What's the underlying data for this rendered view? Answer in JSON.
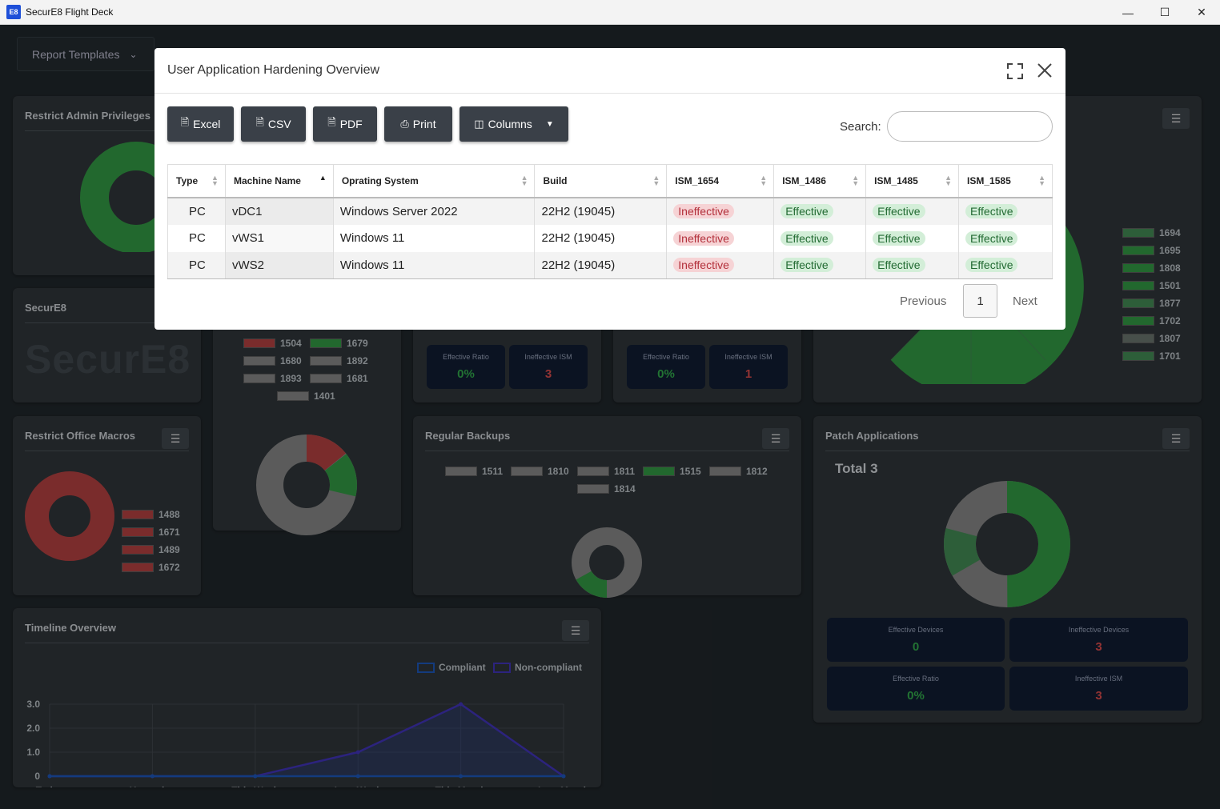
{
  "app": {
    "title": "SecurE8 Flight Deck",
    "logo": "E8"
  },
  "toolbar": {
    "report_templates": "Report Templates"
  },
  "cards": {
    "restrict_admin": {
      "title": "Restrict Admin Privileges"
    },
    "securE8": {
      "title": "SecurE8",
      "logo": "SecurE8"
    },
    "restrict_macros": {
      "title": "Restrict Office Macros",
      "legend": [
        "1488",
        "1671",
        "1489",
        "1672"
      ]
    },
    "app_hardening_card": {
      "legend": [
        "1504",
        "1679",
        "1680",
        "1892",
        "1893",
        "1681",
        "1401"
      ]
    },
    "mid_left_stats": {
      "ratio_label": "Effective Ratio",
      "ratio_value": "0%",
      "ism_label": "Ineffective ISM",
      "ism_value": "3"
    },
    "mid_right_stats": {
      "ratio_label": "Effective Ratio",
      "ratio_value": "0%",
      "ism_label": "Ineffective ISM",
      "ism_value": "1"
    },
    "right_top_legend": [
      "1694",
      "1695",
      "1808",
      "1501",
      "1877",
      "1702",
      "1807",
      "1701"
    ],
    "regular_backups": {
      "title": "Regular Backups",
      "legend": [
        "1511",
        "1810",
        "1811",
        "1515",
        "1812",
        "1814"
      ]
    },
    "patch_applications": {
      "title": "Patch Applications",
      "total": "Total 3",
      "stats": [
        {
          "label": "Effective Devices",
          "value": "0",
          "tone": "green"
        },
        {
          "label": "Ineffective Devices",
          "value": "3",
          "tone": "red"
        },
        {
          "label": "Effective Ratio",
          "value": "0%",
          "tone": "green"
        },
        {
          "label": "Ineffective ISM",
          "value": "3",
          "tone": "red"
        }
      ]
    },
    "timeline": {
      "title": "Timeline Overview",
      "legend_compliant": "Compliant",
      "legend_noncompliant": "Non-compliant",
      "y_ticks": [
        "3.0",
        "2.0",
        "1.0",
        "0"
      ],
      "x_ticks": [
        "Today",
        "Yesterday",
        "This Week",
        "Last Week",
        "This Month",
        "Last Month"
      ]
    }
  },
  "chart_data": {
    "type": "line",
    "x": [
      "Today",
      "Yesterday",
      "This Week",
      "Last Week",
      "This Month",
      "Last Month"
    ],
    "series": [
      {
        "name": "Compliant",
        "values": [
          0,
          0,
          0,
          0,
          0,
          0
        ],
        "color": "#1a4fa8"
      },
      {
        "name": "Non-compliant",
        "values": [
          0,
          0,
          0,
          1,
          3,
          0
        ],
        "color": "#3b2fa8"
      }
    ],
    "ylim": [
      0,
      3
    ],
    "grid": true,
    "legend": "top-right"
  },
  "modal": {
    "title": "User Application Hardening Overview",
    "buttons": {
      "excel": "Excel",
      "csv": "CSV",
      "pdf": "PDF",
      "print": "Print",
      "columns": "Columns"
    },
    "search_label": "Search:",
    "search_value": "",
    "columns": [
      "Type",
      "Machine Name",
      "Oprating System",
      "Build",
      "ISM_1654",
      "ISM_1486",
      "ISM_1485",
      "ISM_1585"
    ],
    "rows": [
      [
        "PC",
        "vDC1",
        "Windows Server 2022",
        "22H2 (19045)",
        "Ineffective",
        "Effective",
        "Effective",
        "Effective"
      ],
      [
        "PC",
        "vWS1",
        "Windows 11",
        "22H2 (19045)",
        "Ineffective",
        "Effective",
        "Effective",
        "Effective"
      ],
      [
        "PC",
        "vWS2",
        "Windows 11",
        "22H2 (19045)",
        "Ineffective",
        "Effective",
        "Effective",
        "Effective"
      ]
    ],
    "pagination": {
      "previous": "Previous",
      "page": "1",
      "next": "Next"
    }
  },
  "colors": {
    "green": "#2e8b3e",
    "red": "#a33b3b",
    "gray": "#7a7a7a",
    "navy": "#0f1a2e"
  }
}
